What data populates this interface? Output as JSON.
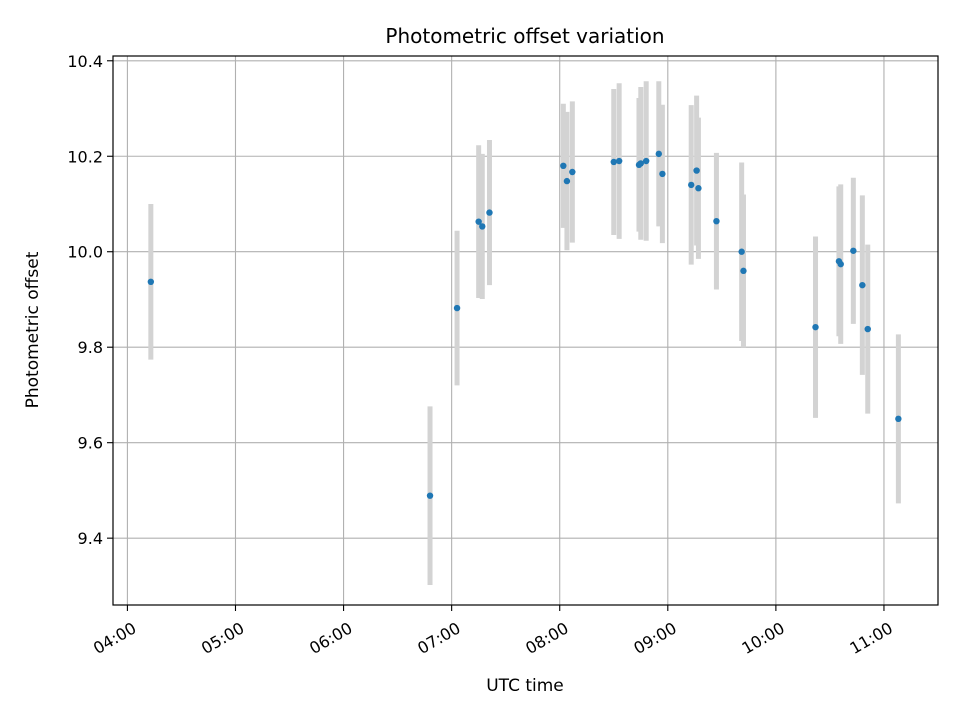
{
  "chart_data": {
    "type": "scatter",
    "title": "Photometric offset variation",
    "xlabel": "UTC time",
    "ylabel": "Photometric offset",
    "xlim": [
      "03:52",
      "11:30"
    ],
    "ylim": [
      9.26,
      10.41
    ],
    "x_ticks": [
      "04:00",
      "05:00",
      "06:00",
      "07:00",
      "08:00",
      "09:00",
      "10:00",
      "11:00"
    ],
    "y_ticks": [
      9.4,
      9.6,
      9.8,
      10.0,
      10.2,
      10.4
    ],
    "y_tick_labels": [
      "9.4",
      "9.6",
      "9.8",
      "10.0",
      "10.2",
      "10.4"
    ],
    "grid": true,
    "point_color": "#1f77b4",
    "errorbar_color": "#d3d3d3",
    "points": [
      {
        "x": "04:13",
        "y": 9.937,
        "err": 0.163
      },
      {
        "x": "06:48",
        "y": 9.489,
        "err": 0.187
      },
      {
        "x": "07:03",
        "y": 9.882,
        "err": 0.162
      },
      {
        "x": "07:15",
        "y": 10.063,
        "err": 0.16
      },
      {
        "x": "07:17",
        "y": 10.053,
        "err": 0.152
      },
      {
        "x": "07:21",
        "y": 10.082,
        "err": 0.152
      },
      {
        "x": "08:02",
        "y": 10.18,
        "err": 0.13
      },
      {
        "x": "08:04",
        "y": 10.148,
        "err": 0.145
      },
      {
        "x": "08:07",
        "y": 10.167,
        "err": 0.148
      },
      {
        "x": "08:30",
        "y": 10.188,
        "err": 0.153
      },
      {
        "x": "08:33",
        "y": 10.19,
        "err": 0.163
      },
      {
        "x": "08:44",
        "y": 10.182,
        "err": 0.14
      },
      {
        "x": "08:45",
        "y": 10.185,
        "err": 0.16
      },
      {
        "x": "08:48",
        "y": 10.19,
        "err": 0.167
      },
      {
        "x": "08:55",
        "y": 10.205,
        "err": 0.152
      },
      {
        "x": "08:57",
        "y": 10.163,
        "err": 0.145
      },
      {
        "x": "09:13",
        "y": 10.14,
        "err": 0.167
      },
      {
        "x": "09:16",
        "y": 10.17,
        "err": 0.157
      },
      {
        "x": "09:17",
        "y": 10.133,
        "err": 0.148
      },
      {
        "x": "09:27",
        "y": 10.064,
        "err": 0.143
      },
      {
        "x": "09:41",
        "y": 10.0,
        "err": 0.187
      },
      {
        "x": "09:42",
        "y": 9.96,
        "err": 0.16
      },
      {
        "x": "10:22",
        "y": 9.842,
        "err": 0.19
      },
      {
        "x": "10:35",
        "y": 9.98,
        "err": 0.157
      },
      {
        "x": "10:36",
        "y": 9.974,
        "err": 0.167
      },
      {
        "x": "10:43",
        "y": 10.002,
        "err": 0.153
      },
      {
        "x": "10:48",
        "y": 9.93,
        "err": 0.188
      },
      {
        "x": "10:51",
        "y": 9.838,
        "err": 0.177
      },
      {
        "x": "11:08",
        "y": 9.65,
        "err": 0.177
      }
    ]
  }
}
